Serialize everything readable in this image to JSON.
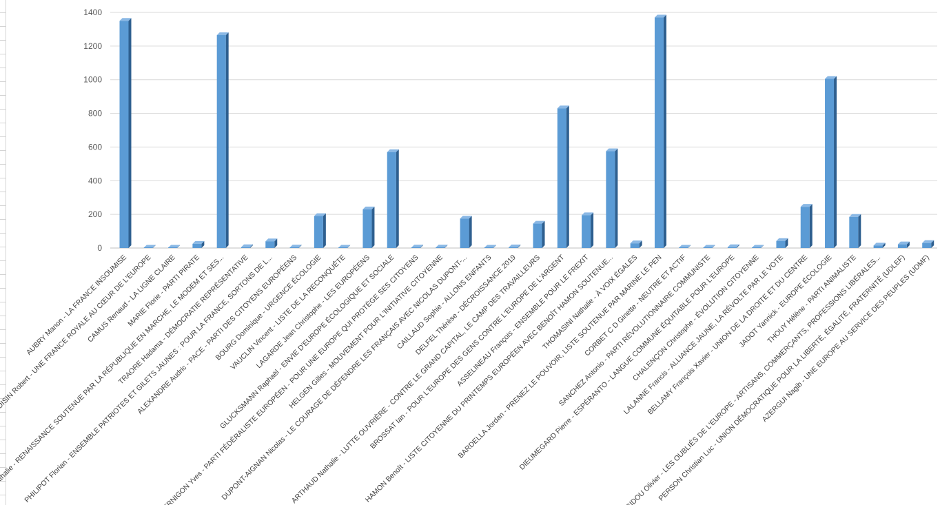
{
  "chart_data": {
    "type": "bar",
    "title": "",
    "xlabel": "",
    "ylabel": "",
    "ylim": [
      0,
      1400
    ],
    "y_ticks": [
      0,
      200,
      400,
      600,
      800,
      1000,
      1200,
      1400
    ],
    "grid": true,
    "legend": "none",
    "bar_style": "3d-column",
    "colors": {
      "bar_front": "#5b9bd5",
      "bar_side": "#2e5f8f",
      "bar_top": "#8ab8e5",
      "grid": "#d9d9d9",
      "axis": "#bfbfbf"
    },
    "categories": [
      "AUBRY Manon - LA FRANCE INSOUMISE",
      "...OISIN Robert - UNE FRANCE ROYALE AU CŒUR DE L'EUROPE",
      "CAMUS Renaud - LA LIGNE CLAIRE",
      "MARIE Florie - PARTI PIRATE",
      "...Nathalie - RENAISSANCE SOUTENUE PAR LA RÉPUBLIQUE EN MARCHE, LE MODEM ET SES...",
      "TRAORE Hadama - DÉMOCRATIE REPRÉSENTATIVE",
      "PHILIPOT Florian - ENSEMBLE PATRIOTES ET GILETS JAUNES : POUR LA FRANCE, SORTONS DE L...",
      "ALEXANDRE Audric - PACE - PARTI DES CITOYENS EUROPÉENS",
      "BOURG Dominique - URGENCE ÉCOLOGIE",
      "VAUCLIN Vincent - LISTE DE LA RECONQUÊTE",
      "LAGARDE Jean Christophe - LES EUROPÉENS",
      "GLUCKSMANN Raphaël - ENVIE D'EUROPE ÉCOLOGIQUE ET SOCIALE",
      "GERNIGON Yves - PARTI FÉDÉRALISTE EUROPÉEN - POUR UNE EUROPE QUI PROTÈGE SES CITOYENS",
      "HELGEN Gilles - MOUVEMENT POUR L'INITIATIVE CITOYENNE",
      "DUPONT-AIGNAN Nicolas - LE COURAGE DE DÉFENDRE LES FRANÇAIS AVEC NICOLAS DUPONT-...",
      "CAILLAUD Sophie - ALLONS ENFANTS",
      "DELFEL Thérèse - DÉCROISSANCE 2019",
      "ARTHAUD Nathalie - LUTTE OUVRIÈRE - CONTRE LE GRAND CAPITAL, LE CAMP DES TRAVAILLEURS",
      "BROSSAT Ian - POUR L'EUROPE DES GENS CONTRE L'EUROPE DE L'ARGENT",
      "ASSELINEAU François - ENSEMBLE POUR LE FREXIT",
      "HAMON Benoît - LISTE CITOYENNE DU PRINTEMPS EUROPÉEN AVEC BENOÎT HAMON SOUTENUE...",
      "THOMASINI Nathalie - À VOIX ÉGALES",
      "BARDELLA Jordan - PRENEZ LE POUVOIR, LISTE SOUTENUE PAR MARINE LE PEN",
      "CORBET C D Ginette - NEUTRE ET ACTIF",
      "SANCHEZ Antonio - PARTI RÉVOLUTIONNAIRE COMMUNISTE",
      "DIEUMEGARD Pierre - ESPÉRANTO - LANGUE COMMUNE ÉQUITABLE POUR L'EUROPE",
      "CHALENÇON Christophe - ÉVOLUTION CITOYENNE",
      "LALANNE Francis - ALLIANCE JAUNE, LA RÉVOLTE PAR LE VOTE",
      "BELLAMY François Xavier - UNION DE LA DROITE ET DU CENTRE",
      "JADOT Yannick - EUROPE ÉCOLOGIE",
      "THOUY Hélène - PARTI ANIMALISTE",
      "BIDOU Olivier - LES OUBLIÉS DE L'EUROPE - ARTISANS, COMMERÇANTS, PROFESSIONS LIBÉRALES...",
      "PERSON Christian Luc - UNION DÉMOCRATIQUE POUR LA LIBERTÉ, ÉGALITÉ, FRATERNITÉ (UDLEF)",
      "AZERGUI Nagib - UNE EUROPE AU SERVICE DES PEUPLES (UDMF)"
    ],
    "values": [
      1350,
      2,
      2,
      25,
      1265,
      5,
      40,
      3,
      190,
      2,
      230,
      570,
      3,
      3,
      175,
      2,
      4,
      145,
      830,
      195,
      575,
      28,
      1370,
      2,
      2,
      5,
      2,
      42,
      245,
      1005,
      185,
      15,
      22,
      30
    ]
  }
}
